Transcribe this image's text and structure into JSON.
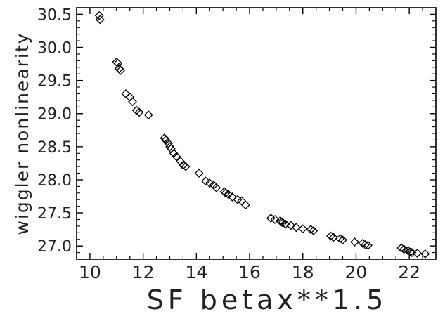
{
  "chart_data": {
    "type": "scatter",
    "xlabel": "SF betax**1.5",
    "ylabel": "wiggler nonlinearity",
    "xlim": [
      9.5,
      23.0
    ],
    "ylim": [
      26.8,
      30.6
    ],
    "xticks": [
      10,
      12,
      14,
      16,
      18,
      20,
      22
    ],
    "yticks": [
      27.0,
      27.5,
      28.0,
      28.5,
      29.0,
      29.5,
      30.0,
      30.5
    ],
    "xtick_labels": [
      "10",
      "12",
      "14",
      "16",
      "18",
      "20",
      "22"
    ],
    "ytick_labels": [
      "27.0",
      "27.5",
      "28.0",
      "28.5",
      "29.0",
      "29.5",
      "30.0",
      "30.5"
    ],
    "marker": "diamond",
    "grid": false,
    "series": [
      {
        "points": [
          [
            10.35,
            30.48
          ],
          [
            10.38,
            30.42
          ],
          [
            11.0,
            29.78
          ],
          [
            11.05,
            29.76
          ],
          [
            11.1,
            29.68
          ],
          [
            11.15,
            29.65
          ],
          [
            11.35,
            29.3
          ],
          [
            11.5,
            29.25
          ],
          [
            11.6,
            29.18
          ],
          [
            11.75,
            29.05
          ],
          [
            11.85,
            29.02
          ],
          [
            12.2,
            28.98
          ],
          [
            12.8,
            28.63
          ],
          [
            12.85,
            28.6
          ],
          [
            12.95,
            28.55
          ],
          [
            13.0,
            28.5
          ],
          [
            13.05,
            28.47
          ],
          [
            13.15,
            28.4
          ],
          [
            13.25,
            28.35
          ],
          [
            13.4,
            28.28
          ],
          [
            13.5,
            28.22
          ],
          [
            13.6,
            28.2
          ],
          [
            14.1,
            28.1
          ],
          [
            14.35,
            27.98
          ],
          [
            14.5,
            27.95
          ],
          [
            14.65,
            27.92
          ],
          [
            14.75,
            27.88
          ],
          [
            15.05,
            27.82
          ],
          [
            15.1,
            27.8
          ],
          [
            15.2,
            27.78
          ],
          [
            15.35,
            27.74
          ],
          [
            15.55,
            27.7
          ],
          [
            15.7,
            27.68
          ],
          [
            15.85,
            27.62
          ],
          [
            16.8,
            27.42
          ],
          [
            16.95,
            27.4
          ],
          [
            17.15,
            27.38
          ],
          [
            17.2,
            27.36
          ],
          [
            17.25,
            27.35
          ],
          [
            17.35,
            27.33
          ],
          [
            17.55,
            27.31
          ],
          [
            17.75,
            27.28
          ],
          [
            18.0,
            27.26
          ],
          [
            18.3,
            27.25
          ],
          [
            18.4,
            27.23
          ],
          [
            19.05,
            27.15
          ],
          [
            19.15,
            27.13
          ],
          [
            19.4,
            27.11
          ],
          [
            19.5,
            27.09
          ],
          [
            19.95,
            27.06
          ],
          [
            20.25,
            27.04
          ],
          [
            20.35,
            27.02
          ],
          [
            20.45,
            27.01
          ],
          [
            21.7,
            26.97
          ],
          [
            21.8,
            26.95
          ],
          [
            21.95,
            26.93
          ],
          [
            22.05,
            26.91
          ],
          [
            22.1,
            26.9
          ],
          [
            22.3,
            26.89
          ],
          [
            22.6,
            26.88
          ]
        ]
      }
    ]
  }
}
